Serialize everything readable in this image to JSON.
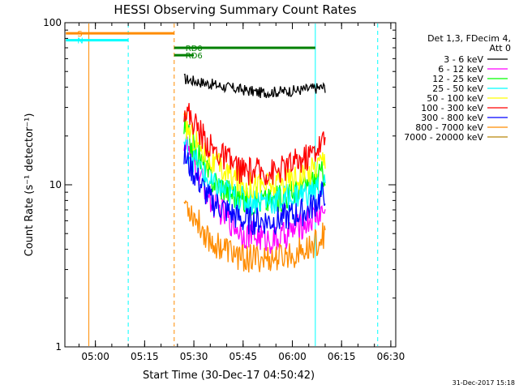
{
  "chart_data": {
    "type": "line",
    "title": "HESSI Observing Summary Count Rates",
    "xlabel": "Start Time (30-Dec-17 04:50:42)",
    "ylabel": "Count Rate (s⁻¹ detector⁻¹)",
    "y_scale": "log",
    "ylim": [
      1,
      100
    ],
    "xlim": [
      "04:50:42",
      "06:31:30"
    ],
    "x_tick_labels": [
      "05:00",
      "05:15",
      "05:30",
      "05:45",
      "06:00",
      "06:15",
      "06:30"
    ],
    "y_tick_labels": [
      "1",
      "10",
      "100"
    ],
    "grid": false,
    "legend_position": "right",
    "legend_header": [
      "Det 1,3, FDecim 4,",
      "Att 0"
    ],
    "series": [
      {
        "name": "3 - 6 keV",
        "color": "#000000",
        "x": [
          "05:27",
          "05:40",
          "05:50",
          "06:00",
          "06:10"
        ],
        "values": [
          45,
          40,
          37,
          38,
          40
        ]
      },
      {
        "name": "6 - 12 keV",
        "color": "#ff00ff",
        "x": [
          "05:27",
          "05:35",
          "05:45",
          "05:55",
          "06:05",
          "06:10"
        ],
        "values": [
          19,
          8,
          5,
          4.5,
          6,
          7
        ]
      },
      {
        "name": "12 - 25 keV",
        "color": "#00ff00",
        "x": [
          "05:27",
          "05:35",
          "05:45",
          "05:55",
          "06:05",
          "06:10"
        ],
        "values": [
          22,
          11,
          8,
          8,
          10,
          12
        ]
      },
      {
        "name": "25 - 50 keV",
        "color": "#00ffff",
        "x": [
          "05:27",
          "05:35",
          "05:45",
          "05:55",
          "06:05",
          "06:10"
        ],
        "values": [
          18,
          10,
          8,
          8,
          9,
          10
        ]
      },
      {
        "name": "50 - 100 keV",
        "color": "#ffff00",
        "x": [
          "05:27",
          "05:35",
          "05:45",
          "05:55",
          "06:05",
          "06:10"
        ],
        "values": [
          24,
          14,
          10,
          10,
          12,
          15
        ]
      },
      {
        "name": "100 - 300 keV",
        "color": "#ff0000",
        "x": [
          "05:27",
          "05:35",
          "05:45",
          "05:55",
          "06:05",
          "06:10"
        ],
        "values": [
          30,
          17,
          12,
          12,
          15,
          19
        ]
      },
      {
        "name": "300 - 800 keV",
        "color": "#0000ff",
        "x": [
          "05:27",
          "05:35",
          "05:45",
          "05:55",
          "06:05",
          "06:10"
        ],
        "values": [
          15,
          8,
          6,
          6,
          7,
          9
        ]
      },
      {
        "name": "800 - 7000 keV",
        "color": "#ff8c00",
        "x": [
          "05:27",
          "05:35",
          "05:45",
          "05:55",
          "06:05",
          "06:10"
        ],
        "values": [
          8,
          4.5,
          3.5,
          3.5,
          4,
          5
        ]
      },
      {
        "name": "7000 - 20000 keV",
        "color": "#b8860b",
        "x": [],
        "values": []
      }
    ],
    "annotations": [
      {
        "label": "S",
        "color": "#ff8c00",
        "segment": [
          "04:51",
          "05:24"
        ],
        "y": 86
      },
      {
        "label": "N",
        "color": "#00ffff",
        "segment": [
          "04:51",
          "05:10"
        ],
        "y": 78
      },
      {
        "label": "RD0",
        "color": "#008000",
        "segment": [
          "05:24",
          "06:07"
        ],
        "y": 70
      },
      {
        "label": "RD6",
        "color": "#008000",
        "segment": [
          "05:24",
          "05:30"
        ],
        "y": 63
      }
    ],
    "vertical_markers": [
      {
        "x": "04:58",
        "color": "#ff8c00",
        "style": "solid"
      },
      {
        "x": "05:10",
        "color": "#00ffff",
        "style": "dashed"
      },
      {
        "x": "05:24",
        "color": "#ff8c00",
        "style": "dashed"
      },
      {
        "x": "06:07",
        "color": "#00ffff",
        "style": "solid"
      },
      {
        "x": "06:26",
        "color": "#00ffff",
        "style": "dashed"
      }
    ],
    "footer": "31-Dec-2017 15:18"
  }
}
